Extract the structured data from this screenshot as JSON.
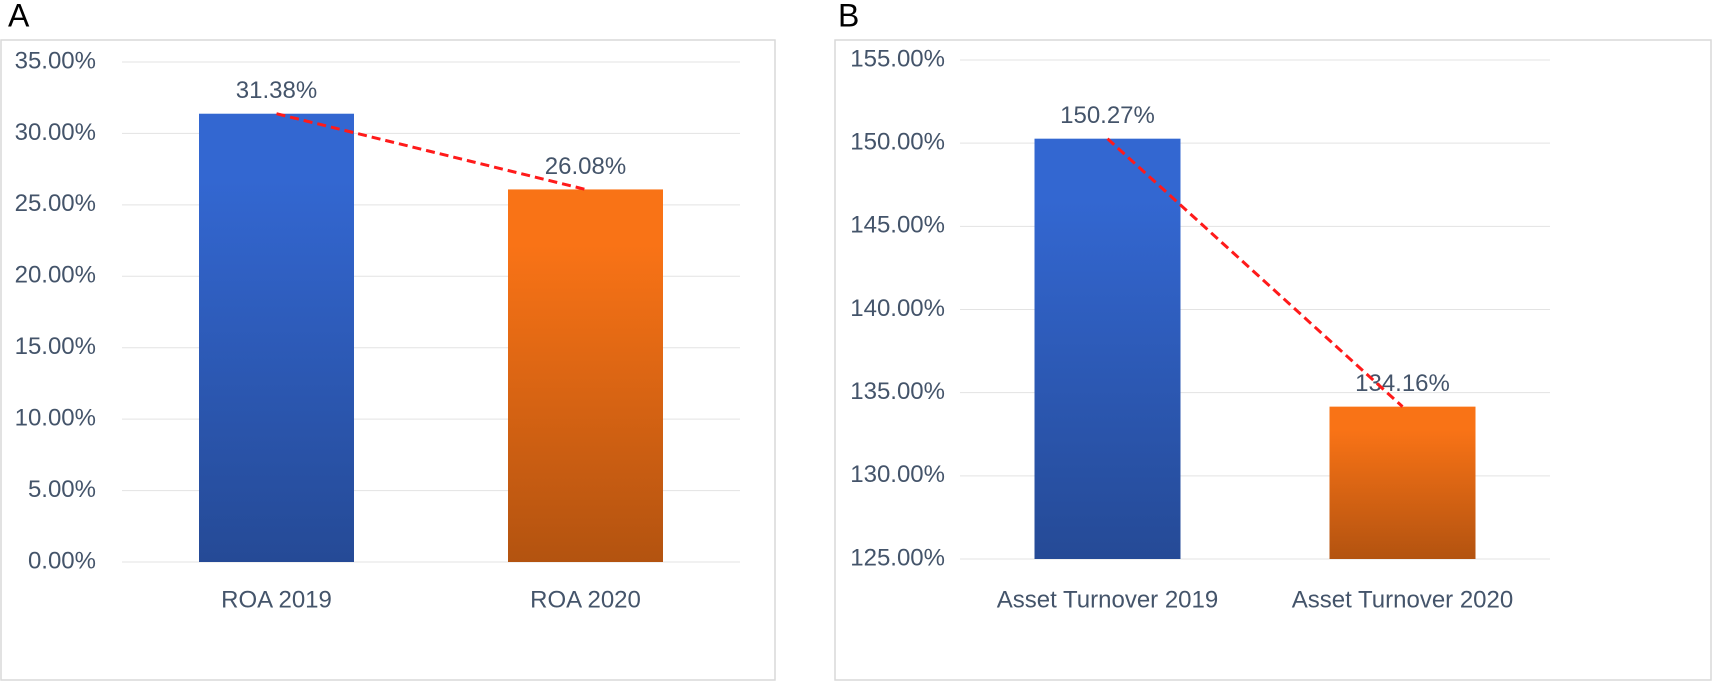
{
  "chart_data": [
    {
      "type": "bar",
      "panel_label": "A",
      "categories": [
        "ROA 2019",
        "ROA 2020"
      ],
      "values": [
        31.38,
        26.08
      ],
      "value_labels": [
        "31.38%",
        "26.08%"
      ],
      "colors": [
        "#3367d1",
        "#f97316"
      ],
      "ylim": [
        0,
        35
      ],
      "yticks": [
        {
          "value": 0,
          "label": "0.00%"
        },
        {
          "value": 5,
          "label": "5.00%"
        },
        {
          "value": 10,
          "label": "10.00%"
        },
        {
          "value": 15,
          "label": "15.00%"
        },
        {
          "value": 20,
          "label": "20.00%"
        },
        {
          "value": 25,
          "label": "25.00%"
        },
        {
          "value": 30,
          "label": "30.00%"
        },
        {
          "value": 35,
          "label": "35.00%"
        }
      ],
      "grid": true,
      "trendline": true,
      "trendline_color": "#ff1a1a"
    },
    {
      "type": "bar",
      "panel_label": "B",
      "categories": [
        "Asset Turnover 2019",
        "Asset Turnover 2020"
      ],
      "values": [
        150.27,
        134.16
      ],
      "value_labels": [
        "150.27%",
        "134.16%"
      ],
      "colors": [
        "#3367d1",
        "#f97316"
      ],
      "ylim": [
        125,
        155
      ],
      "yticks": [
        {
          "value": 125,
          "label": "125.00%"
        },
        {
          "value": 130,
          "label": "130.00%"
        },
        {
          "value": 135,
          "label": "135.00%"
        },
        {
          "value": 140,
          "label": "140.00%"
        },
        {
          "value": 145,
          "label": "145.00%"
        },
        {
          "value": 150,
          "label": "150.00%"
        },
        {
          "value": 155,
          "label": "155.00%"
        }
      ],
      "grid": true,
      "trendline": true,
      "trendline_color": "#ff1a1a"
    }
  ]
}
